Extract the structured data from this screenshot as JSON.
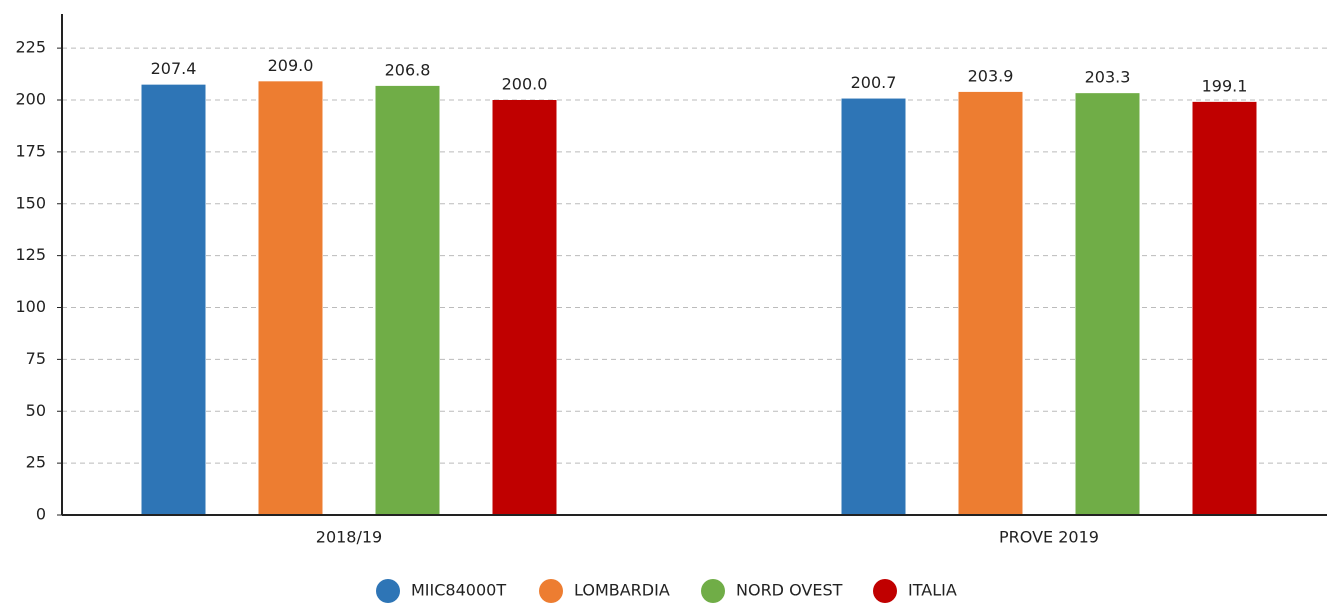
{
  "chart_data": {
    "type": "bar",
    "categories": [
      "2018/19",
      "PROVE 2019"
    ],
    "series": [
      {
        "name": "MIIC84000T",
        "color": "#2e75b6",
        "values": [
          207.4,
          200.7
        ],
        "value_labels": [
          "207.4",
          "200.7"
        ]
      },
      {
        "name": "LOMBARDIA",
        "color": "#ed7d31",
        "values": [
          209.0,
          203.9
        ],
        "value_labels": [
          "209.0",
          "203.9"
        ]
      },
      {
        "name": "NORD OVEST",
        "color": "#70ad47",
        "values": [
          206.8,
          203.3
        ],
        "value_labels": [
          "206.8",
          "203.3"
        ]
      },
      {
        "name": "ITALIA",
        "color": "#c00000",
        "values": [
          200.0,
          199.1
        ],
        "value_labels": [
          "200.0",
          "199.1"
        ]
      }
    ],
    "ylim": [
      0,
      240
    ],
    "yticks": [
      0,
      25,
      50,
      75,
      100,
      125,
      150,
      175,
      200,
      225
    ],
    "grid": true,
    "legend": "bottom"
  }
}
